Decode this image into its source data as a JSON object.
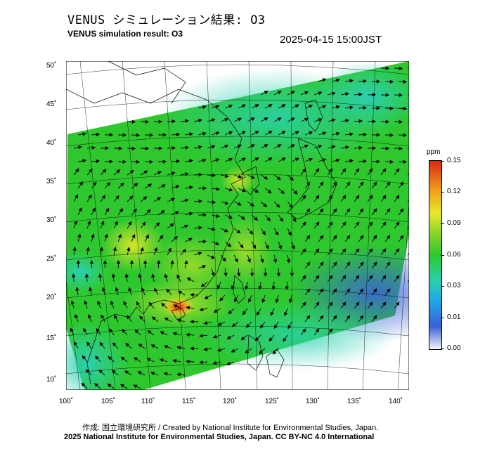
{
  "header": {
    "title_jp": "VENUS シミュレーション結果: O3",
    "title_en": "VENUS simulation result: O3",
    "timestamp": "2025-04-15 15:00JST"
  },
  "map": {
    "lon_ticks": [
      "100˚",
      "105˚",
      "110˚",
      "115˚",
      "120˚",
      "125˚",
      "130˚",
      "135˚",
      "140˚"
    ],
    "lat_ticks": [
      "50˚",
      "45˚",
      "40˚",
      "35˚",
      "30˚",
      "25˚",
      "20˚",
      "15˚",
      "10˚"
    ],
    "field": "O3 concentration with wind vectors",
    "colors": {
      "ocean_low": "#3a62d6",
      "mid": "#2ec82e",
      "high": "#e8e82a",
      "peak": "#d52a14"
    }
  },
  "colorbar": {
    "unit": "ppm",
    "labels": [
      "0.15",
      "0.12",
      "0.09",
      "0.06",
      "0.03",
      "0.01",
      "0.00"
    ]
  },
  "footer": {
    "credit": "作成: 国立環境研究所 / Created by National Institute for Environmental Studies, Japan.",
    "copyright": "2025 National Institute for Environmental Studies, Japan. CC BY-NC 4.0 International"
  }
}
